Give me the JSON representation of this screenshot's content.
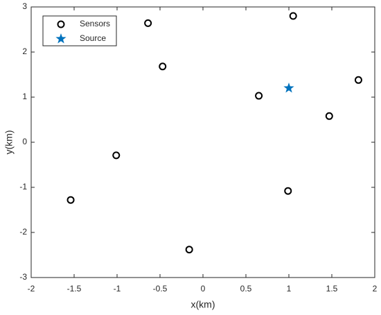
{
  "chart_data": {
    "type": "scatter",
    "xlabel": "x(km)",
    "ylabel": "y(km)",
    "xlim": [
      -2,
      2
    ],
    "ylim": [
      -3,
      3
    ],
    "xticks": [
      -2,
      -1.5,
      -1,
      -0.5,
      0,
      0.5,
      1,
      1.5,
      2
    ],
    "yticks": [
      -3,
      -2,
      -1,
      0,
      1,
      2,
      3
    ],
    "legend": "northwest",
    "series": [
      {
        "name": "Sensors",
        "color": "#000000",
        "marker": "o",
        "x": [
          -0.64,
          1.05,
          -0.47,
          0.65,
          1.81,
          1.47,
          -1.01,
          -1.54,
          0.99,
          -0.16
        ],
        "values": [
          2.64,
          2.8,
          1.68,
          1.03,
          1.38,
          0.58,
          -0.29,
          -1.28,
          -1.08,
          -2.38
        ]
      },
      {
        "name": "Source",
        "color": "#0072BD",
        "marker": "*",
        "x": [
          1.0
        ],
        "values": [
          1.2
        ]
      }
    ]
  }
}
